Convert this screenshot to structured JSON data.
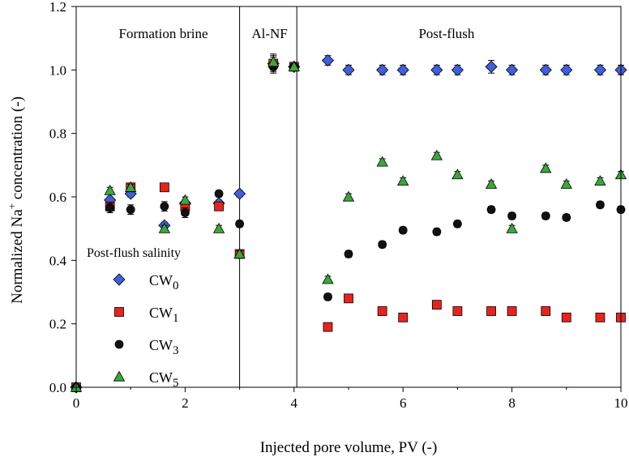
{
  "chart_data": {
    "type": "scatter",
    "xlabel": "Injected pore volume, PV (-)",
    "ylabel": {
      "prefix": "Normalized Na",
      "sup": "+",
      "suffix": " concentration (-)"
    },
    "xlim": [
      0,
      10
    ],
    "ylim": [
      0,
      1.2
    ],
    "xticks": [
      "0",
      "2",
      "4",
      "6",
      "8",
      "10"
    ],
    "yticks": [
      "0.0",
      "0.2",
      "0.4",
      "0.6",
      "0.8",
      "1.0",
      "1.2"
    ],
    "regions": [
      {
        "label": "Formation brine",
        "x_center": 1.6
      },
      {
        "label": "Al-NF",
        "x_center": 3.55
      },
      {
        "label": "Post-flush",
        "x_center": 6.8
      }
    ],
    "boundaries": [
      3.0,
      4.05
    ],
    "legend": {
      "title": "Post-flush salinity",
      "placement": "middle-left"
    },
    "series": [
      {
        "name": "CW",
        "sub": "0",
        "marker": "diamond",
        "color": "#3f5fe0",
        "x": [
          0,
          0.62,
          1.0,
          1.62,
          2.0,
          2.62,
          3.0,
          3.62,
          4.0,
          4.62,
          5.0,
          5.62,
          6.0,
          6.62,
          7.0,
          7.62,
          8.0,
          8.62,
          9.0,
          9.62,
          10.0
        ],
        "y": [
          0,
          0.59,
          0.61,
          0.51,
          0.58,
          0.58,
          0.61,
          1.02,
          1.01,
          1.03,
          1.0,
          1.0,
          1.0,
          1.0,
          1.0,
          1.01,
          1.0,
          1.0,
          1.0,
          1.0,
          1.0
        ],
        "err": [
          0,
          0.01,
          0.01,
          0.01,
          0.01,
          0.01,
          0.01,
          0.03,
          0.01,
          0.015,
          0.015,
          0.015,
          0.015,
          0.015,
          0.015,
          0.02,
          0.015,
          0.015,
          0.015,
          0.015,
          0.015
        ]
      },
      {
        "name": "CW",
        "sub": "1",
        "marker": "square",
        "color": "#e8231e",
        "x": [
          0,
          0.62,
          1.0,
          1.62,
          2.0,
          2.62,
          3.0,
          3.62,
          4.0,
          4.62,
          5.0,
          5.62,
          6.0,
          6.62,
          7.0,
          7.62,
          8.0,
          8.62,
          9.0,
          9.62,
          10.0
        ],
        "y": [
          0,
          0.57,
          0.63,
          0.63,
          0.57,
          0.57,
          0.42,
          1.02,
          1.01,
          0.19,
          0.28,
          0.24,
          0.22,
          0.26,
          0.24,
          0.24,
          0.24,
          0.24,
          0.22,
          0.22,
          0.22
        ],
        "err": [
          0,
          0.01,
          0.01,
          0.01,
          0.01,
          0.01,
          0.01,
          0.02,
          0.01,
          0.01,
          0.01,
          0.01,
          0.01,
          0.01,
          0.01,
          0.01,
          0.01,
          0.01,
          0.01,
          0.01,
          0.01
        ]
      },
      {
        "name": "CW",
        "sub": "3",
        "marker": "circle",
        "color": "#111111",
        "x": [
          0,
          0.62,
          1.0,
          1.62,
          2.0,
          2.62,
          3.0,
          3.62,
          4.0,
          4.62,
          5.0,
          5.62,
          6.0,
          6.62,
          7.0,
          7.62,
          8.0,
          8.62,
          9.0,
          9.62,
          10.0
        ],
        "y": [
          0,
          0.565,
          0.56,
          0.57,
          0.55,
          0.61,
          0.515,
          1.01,
          1.01,
          0.285,
          0.42,
          0.45,
          0.495,
          0.49,
          0.515,
          0.56,
          0.54,
          0.54,
          0.535,
          0.575,
          0.56
        ],
        "err": [
          0,
          0.015,
          0.015,
          0.015,
          0.015,
          0.01,
          0.01,
          0.015,
          0.01,
          0.01,
          0.01,
          0.01,
          0.01,
          0.01,
          0.01,
          0.01,
          0.01,
          0.01,
          0.01,
          0.01,
          0.01
        ]
      },
      {
        "name": "CW",
        "sub": "5",
        "marker": "triangle",
        "color": "#39a83a",
        "x": [
          0,
          0.62,
          1.0,
          1.62,
          2.0,
          2.62,
          3.0,
          3.62,
          4.0,
          4.62,
          5.0,
          5.62,
          6.0,
          6.62,
          7.0,
          7.62,
          8.0,
          8.62,
          9.0,
          9.62,
          10.0
        ],
        "y": [
          0,
          0.62,
          0.63,
          0.5,
          0.59,
          0.5,
          0.42,
          1.025,
          1.01,
          0.34,
          0.6,
          0.71,
          0.65,
          0.73,
          0.67,
          0.64,
          0.5,
          0.69,
          0.64,
          0.65,
          0.67
        ],
        "err": [
          0,
          0.01,
          0.01,
          0.01,
          0.01,
          0.01,
          0.01,
          0.02,
          0.01,
          0.01,
          0.01,
          0.01,
          0.01,
          0.01,
          0.01,
          0.01,
          0.01,
          0.01,
          0.01,
          0.01,
          0.01
        ]
      }
    ]
  }
}
